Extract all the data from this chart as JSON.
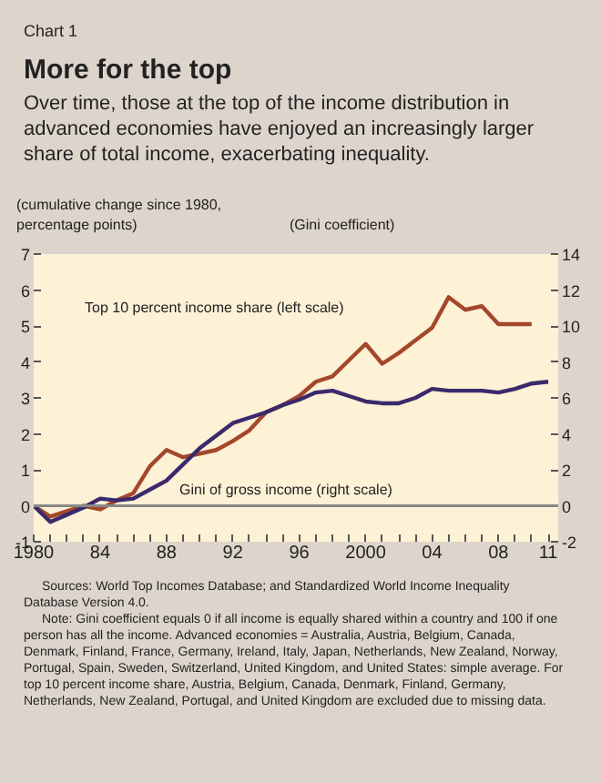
{
  "chart_data": {
    "type": "line",
    "title": "More for the top",
    "subtitle": "Over time, those at the top of the income distribution in advanced economies have enjoyed an increasingly larger share of total income, exacerbating inequality.",
    "ylabel": "(cumulative change since 1980, percentage points)",
    "y2label": "(Gini coefficient)",
    "annotations": [
      "Chart 1",
      "Sources: World Top Incomes Database; and Standardized World Income Inequality Database Version 4.0.",
      "Note: Gini coefficient equals 0 if all income is equally shared within a country and 100 if one person has all the income. Advanced economies = Australia, Austria, Belgium, Canada, Denmark, Finland, France, Germany, Ireland, Italy, Japan, Netherlands, New Zealand, Norway, Portugal, Spain, Sweden, Switzerland, United Kingdom, and United States: simple average. For top 10 percent income share, Austria, Belgium, Canada, Denmark, Finland, Germany, Netherlands, New Zealand, Portugal, and United Kingdom are excluded due to missing data."
    ],
    "x": [
      1980,
      1981,
      1982,
      1983,
      1984,
      1985,
      1986,
      1987,
      1988,
      1989,
      1990,
      1991,
      1992,
      1993,
      1994,
      1995,
      1996,
      1997,
      1998,
      1999,
      2000,
      2001,
      2002,
      2003,
      2004,
      2005,
      2006,
      2007,
      2008,
      2009,
      2010,
      2011
    ],
    "series": [
      {
        "name": "Top 10 percent income share (left scale)",
        "color": "#a4472a",
        "values": [
          0,
          -0.3,
          -0.15,
          0,
          -0.1,
          0.15,
          0.35,
          1.1,
          1.55,
          1.35,
          1.45,
          1.55,
          1.8,
          2.1,
          2.6,
          2.8,
          3.05,
          3.45,
          3.6,
          4.05,
          4.5,
          3.95,
          4.25,
          4.6,
          4.95,
          5.8,
          5.45,
          5.55,
          5.05,
          5.05,
          5.05,
          null
        ]
      },
      {
        "name": "Gini of gross income (right scale)",
        "color": "#3b2a6b",
        "axis": "y2",
        "values": [
          0,
          -0.9,
          -0.5,
          -0.1,
          0.4,
          0.3,
          0.4,
          0.9,
          1.4,
          2.3,
          3.2,
          3.9,
          4.6,
          4.9,
          5.2,
          5.6,
          5.9,
          6.3,
          6.4,
          6.1,
          5.8,
          5.7,
          5.7,
          6.0,
          6.5,
          6.4,
          6.4,
          6.4,
          6.3,
          6.5,
          6.8,
          6.9
        ]
      }
    ],
    "xlim": [
      1980,
      2011.6
    ],
    "xticks": [
      1980,
      {
        "value": 1981,
        "label": null
      },
      {
        "value": 1982,
        "label": null
      },
      {
        "value": 1983,
        "label": null
      },
      {
        "value": 1984,
        "label": "84"
      },
      {
        "value": 1985,
        "label": null
      },
      {
        "value": 1986,
        "label": null
      },
      {
        "value": 1987,
        "label": null
      },
      {
        "value": 1988,
        "label": "88"
      },
      {
        "value": 1989,
        "label": null
      },
      {
        "value": 1990,
        "label": null
      },
      {
        "value": 1991,
        "label": null
      },
      {
        "value": 1992,
        "label": "92"
      },
      {
        "value": 1993,
        "label": null
      },
      {
        "value": 1994,
        "label": null
      },
      {
        "value": 1995,
        "label": null
      },
      {
        "value": 1996,
        "label": "96"
      },
      {
        "value": 1997,
        "label": null
      },
      {
        "value": 1998,
        "label": null
      },
      {
        "value": 1999,
        "label": null
      },
      2000,
      {
        "value": 2001,
        "label": null
      },
      {
        "value": 2002,
        "label": null
      },
      {
        "value": 2003,
        "label": null
      },
      {
        "value": 2004,
        "label": "04"
      },
      {
        "value": 2005,
        "label": null
      },
      {
        "value": 2006,
        "label": null
      },
      {
        "value": 2007,
        "label": null
      },
      {
        "value": 2008,
        "label": "08"
      },
      {
        "value": 2009,
        "label": null
      },
      {
        "value": 2010,
        "label": null
      },
      {
        "value": 2011,
        "label": "11"
      }
    ],
    "ylim": [
      -1,
      7
    ],
    "yticks": [
      -1,
      0,
      1,
      2,
      3,
      4,
      5,
      6,
      7
    ],
    "y2lim": [
      -2,
      14
    ],
    "y2ticks": [
      -2,
      0,
      2,
      4,
      6,
      8,
      10,
      12,
      14
    ],
    "ref_lines": [
      {
        "axis": "y",
        "value": 0,
        "label": null,
        "color": "#888888"
      }
    ],
    "grid": false,
    "line_style": "solid",
    "marker": "none"
  }
}
